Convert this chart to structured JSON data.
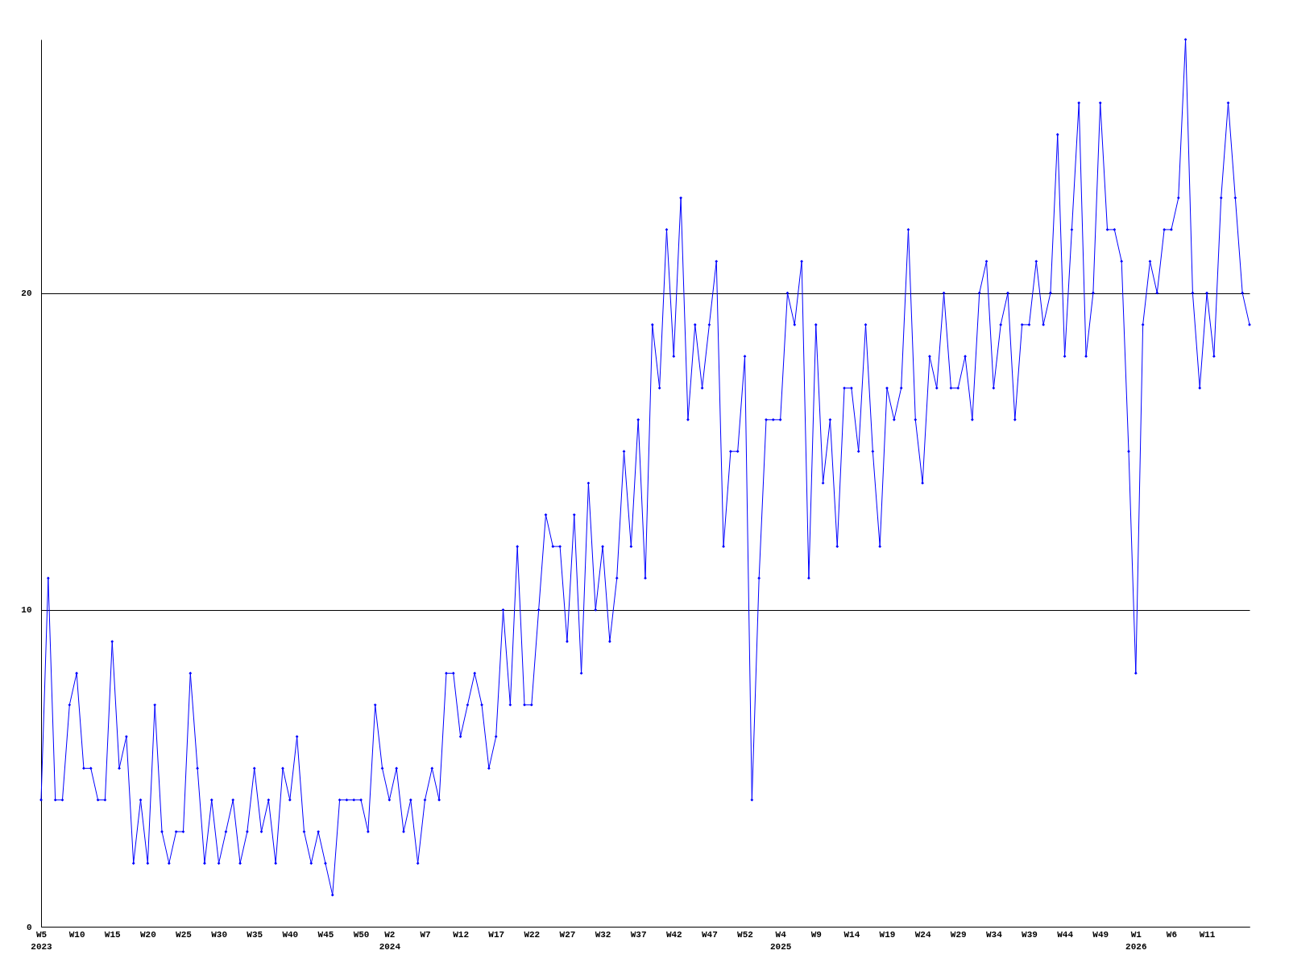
{
  "chart_data": {
    "type": "line",
    "categories": [
      "W5\n2023",
      null,
      null,
      null,
      null,
      "W10",
      null,
      null,
      null,
      null,
      "W15",
      null,
      null,
      null,
      null,
      "W20",
      null,
      null,
      null,
      null,
      "W25",
      null,
      null,
      null,
      null,
      "W30",
      null,
      null,
      null,
      null,
      "W35",
      null,
      null,
      null,
      null,
      "W40",
      null,
      null,
      null,
      null,
      "W45",
      null,
      null,
      null,
      null,
      "W50",
      null,
      null,
      null,
      "W2\n2024",
      null,
      null,
      null,
      null,
      "W7",
      null,
      null,
      null,
      null,
      "W12",
      null,
      null,
      null,
      null,
      "W17",
      null,
      null,
      null,
      null,
      "W22",
      null,
      null,
      null,
      null,
      "W27",
      null,
      null,
      null,
      null,
      "W32",
      null,
      null,
      null,
      null,
      "W37",
      null,
      null,
      null,
      null,
      "W42",
      null,
      null,
      null,
      null,
      "W47",
      null,
      null,
      null,
      null,
      "W52",
      null,
      null,
      null,
      null,
      "W4\n2025",
      null,
      null,
      null,
      null,
      "W9",
      null,
      null,
      null,
      null,
      "W14",
      null,
      null,
      null,
      null,
      "W19",
      null,
      null,
      null,
      null,
      "W24",
      null,
      null,
      null,
      null,
      "W29",
      null,
      null,
      null,
      null,
      "W34",
      null,
      null,
      null,
      null,
      "W39",
      null,
      null,
      null,
      null,
      "W44",
      null,
      null,
      null,
      null,
      "W49",
      null,
      null,
      null,
      null,
      "W1\n2026",
      null,
      null,
      null,
      null,
      "W6",
      null,
      null,
      null,
      null,
      "W11",
      null,
      null,
      null,
      null,
      null,
      null
    ],
    "series": [
      {
        "color": "#0000ff",
        "values": [
          4,
          11,
          4,
          4,
          7,
          8,
          5,
          5,
          4,
          4,
          9,
          5,
          6,
          2,
          4,
          2,
          7,
          3,
          2,
          3,
          3,
          8,
          5,
          2,
          4,
          2,
          3,
          4,
          2,
          3,
          5,
          3,
          4,
          2,
          5,
          4,
          6,
          3,
          2,
          3,
          2,
          1,
          4,
          4,
          4,
          4,
          3,
          7,
          5,
          4,
          5,
          3,
          4,
          2,
          4,
          5,
          4,
          8,
          8,
          6,
          7,
          8,
          7,
          5,
          6,
          10,
          7,
          12,
          7,
          7,
          10,
          13,
          12,
          12,
          9,
          13,
          8,
          14,
          10,
          12,
          9,
          11,
          15,
          12,
          16,
          11,
          19,
          17,
          22,
          18,
          23,
          16,
          19,
          17,
          19,
          21,
          12,
          15,
          15,
          18,
          4,
          11,
          16,
          16,
          16,
          20,
          19,
          21,
          11,
          19,
          14,
          16,
          12,
          17,
          17,
          15,
          19,
          15,
          12,
          17,
          16,
          17,
          22,
          16,
          14,
          18,
          17,
          20,
          17,
          17,
          18,
          16,
          20,
          21,
          17,
          19,
          20,
          16,
          19,
          19,
          21,
          19,
          20,
          25,
          18,
          22,
          26,
          18,
          20,
          26,
          22,
          22,
          21,
          15,
          8,
          19,
          21,
          20,
          22,
          22,
          23,
          28,
          20,
          17,
          20,
          18,
          23,
          26,
          23,
          20,
          19
        ]
      }
    ],
    "ylim": [
      0,
      28
    ],
    "yticks": [
      0,
      10,
      20
    ],
    "grid": "y",
    "marker": "diamond",
    "line_style": "solid"
  }
}
